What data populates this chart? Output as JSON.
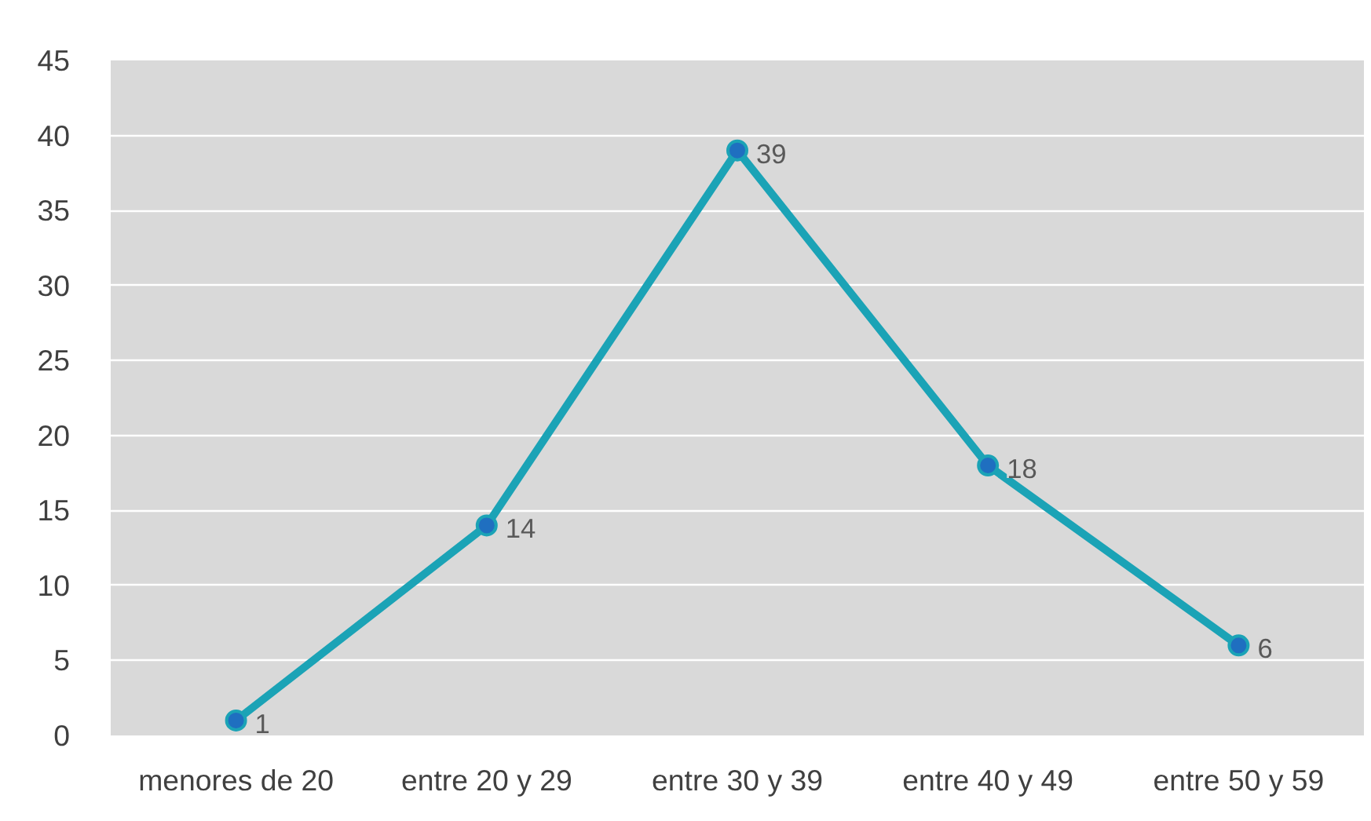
{
  "chart_data": {
    "type": "line",
    "categories": [
      "menores de 20",
      "entre 20 y 29",
      "entre 30 y 39",
      "entre 40 y 49",
      "entre 50 y 59"
    ],
    "values": [
      1,
      14,
      39,
      18,
      6
    ],
    "color": "#1ba3b6",
    "ylim": [
      0,
      45
    ],
    "yticks": [
      0,
      5,
      10,
      15,
      20,
      25,
      30,
      35,
      40,
      45
    ],
    "grid": "y",
    "data_labels": true,
    "marker": "circle"
  }
}
